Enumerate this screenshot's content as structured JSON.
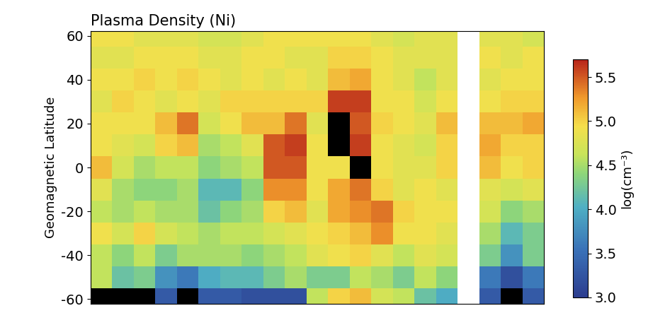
{
  "chart_data": {
    "type": "heatmap",
    "title": "Plasma Density (Ni)",
    "y_label": "Geomagnetic Latitude",
    "tick_labels": "y",
    "x": [
      1,
      2,
      3,
      4,
      5,
      6,
      7,
      8,
      9,
      10,
      11,
      12,
      13,
      14,
      15,
      16,
      17,
      18,
      19,
      20,
      21
    ],
    "y": [
      -60,
      -50,
      -40,
      -30,
      -20,
      -10,
      0,
      10,
      20,
      30,
      40,
      50,
      60
    ],
    "xlim": [
      0.5,
      21.5
    ],
    "ylim": [
      -62,
      62
    ],
    "yticks": [
      -60,
      -40,
      -20,
      0,
      20,
      40,
      60
    ],
    "cells": [
      [
        2.9,
        4.6,
        4.6,
        4.9,
        4.6,
        4.8,
        5.1,
        4.9,
        4.9,
        4.8,
        4.9,
        4.8,
        4.9
      ],
      [
        2.9,
        4.2,
        4.4,
        4.7,
        4.5,
        4.5,
        4.7,
        4.8,
        4.9,
        5.0,
        4.9,
        4.8,
        4.9
      ],
      [
        2.9,
        4.3,
        4.6,
        5.0,
        4.6,
        4.4,
        4.5,
        4.7,
        4.9,
        4.9,
        5.0,
        4.9,
        4.8
      ],
      [
        3.3,
        3.8,
        4.3,
        4.7,
        4.5,
        4.4,
        4.6,
        5.0,
        5.1,
        4.8,
        4.9,
        4.9,
        4.8
      ],
      [
        2.9,
        3.6,
        4.5,
        4.6,
        4.5,
        4.5,
        4.6,
        5.1,
        5.4,
        4.9,
        5.0,
        4.9,
        4.8
      ],
      [
        3.3,
        4.0,
        4.5,
        4.5,
        4.2,
        4.1,
        4.4,
        4.5,
        4.7,
        4.8,
        4.9,
        4.8,
        4.7
      ],
      [
        3.3,
        4.1,
        4.5,
        4.6,
        4.4,
        4.1,
        4.5,
        4.6,
        4.9,
        5.0,
        4.8,
        4.8,
        4.7
      ],
      [
        3.2,
        4.1,
        4.4,
        4.6,
        4.5,
        4.4,
        4.6,
        4.8,
        5.1,
        5.0,
        4.9,
        4.9,
        4.8
      ],
      [
        3.2,
        4.3,
        4.5,
        4.7,
        5.0,
        5.3,
        5.5,
        5.5,
        5.1,
        5.0,
        4.8,
        4.9,
        4.9
      ],
      [
        3.2,
        4.5,
        4.6,
        4.8,
        5.1,
        5.3,
        5.5,
        5.6,
        5.4,
        5.0,
        4.9,
        4.8,
        4.9
      ],
      [
        4.6,
        4.3,
        4.8,
        4.9,
        4.8,
        4.9,
        4.9,
        4.9,
        4.8,
        5.0,
        4.8,
        4.8,
        4.9
      ],
      [
        5.0,
        4.3,
        4.9,
        5.0,
        5.2,
        5.2,
        4.9,
        2.9,
        2.9,
        5.6,
        5.1,
        5.0,
        4.9
      ],
      [
        5.1,
        4.6,
        5.0,
        5.1,
        5.3,
        5.4,
        2.9,
        5.6,
        5.5,
        5.6,
        5.2,
        5.0,
        4.9
      ],
      [
        4.7,
        4.5,
        4.8,
        5.3,
        5.4,
        5.0,
        4.9,
        4.9,
        5.0,
        4.9,
        4.9,
        4.9,
        4.8
      ],
      [
        4.6,
        4.3,
        4.6,
        4.9,
        5.0,
        4.8,
        4.8,
        4.8,
        4.9,
        4.9,
        4.8,
        4.8,
        4.7
      ],
      [
        4.2,
        4.6,
        4.8,
        4.9,
        4.9,
        4.9,
        4.8,
        4.7,
        4.8,
        4.7,
        4.6,
        4.8,
        4.8
      ],
      [
        4.0,
        4.4,
        4.7,
        4.8,
        4.9,
        4.8,
        5.0,
        5.0,
        5.1,
        4.9,
        4.8,
        4.8,
        4.8
      ],
      [
        null,
        null,
        null,
        null,
        null,
        null,
        null,
        null,
        null,
        null,
        null,
        null,
        null
      ],
      [
        3.3,
        3.6,
        4.3,
        4.5,
        4.7,
        4.8,
        5.1,
        5.2,
        5.1,
        4.9,
        4.8,
        4.9,
        4.8
      ],
      [
        2.9,
        3.2,
        3.8,
        4.1,
        4.4,
        4.7,
        4.9,
        5.0,
        5.1,
        5.0,
        4.9,
        4.8,
        4.8
      ],
      [
        3.3,
        3.6,
        4.3,
        4.3,
        4.5,
        4.8,
        5.0,
        5.0,
        5.2,
        5.0,
        4.9,
        4.9,
        4.7
      ]
    ],
    "colorbar_label": "log(cm⁻³)",
    "colorbar_range": [
      3.0,
      5.7
    ],
    "colorbar_ticks": [
      3.0,
      3.5,
      4.0,
      4.5,
      5.0,
      5.5
    ]
  }
}
